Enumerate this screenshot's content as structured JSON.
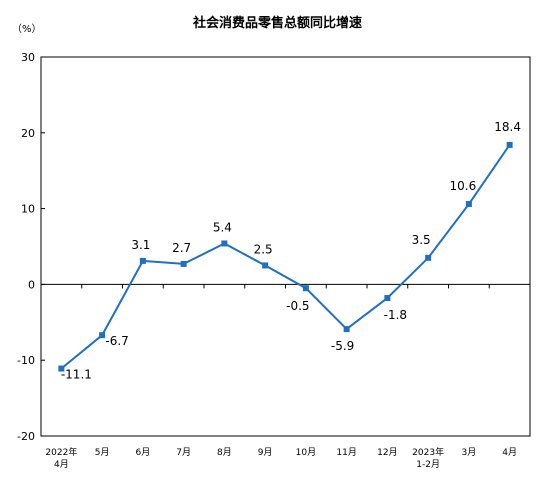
{
  "chart_data": {
    "type": "line",
    "title": "社会消费品零售总额同比增速",
    "y_unit": "（%）",
    "categories": [
      [
        "2022年",
        "4月"
      ],
      [
        "5月"
      ],
      [
        "6月"
      ],
      [
        "7月"
      ],
      [
        "8月"
      ],
      [
        "9月"
      ],
      [
        "10月"
      ],
      [
        "11月"
      ],
      [
        "12月"
      ],
      [
        "2023年",
        "1-2月"
      ],
      [
        "3月"
      ],
      [
        "4月"
      ]
    ],
    "series": [
      {
        "values": [
          -11.1,
          -6.7,
          3.1,
          2.7,
          5.4,
          2.5,
          -0.5,
          -5.9,
          -1.8,
          3.5,
          10.6,
          18.4
        ]
      }
    ],
    "data_labels": [
      "-11.1",
      "-6.7",
      "3.1",
      "2.7",
      "5.4",
      "2.5",
      "-0.5",
      "-5.9",
      "-1.8",
      "3.5",
      "10.6",
      "18.4"
    ],
    "ylim": [
      -20,
      30
    ],
    "yticks": [
      -20,
      -10,
      0,
      10,
      20,
      30
    ],
    "line_color": "#1f6fc5",
    "grid": false,
    "legend": "none"
  }
}
